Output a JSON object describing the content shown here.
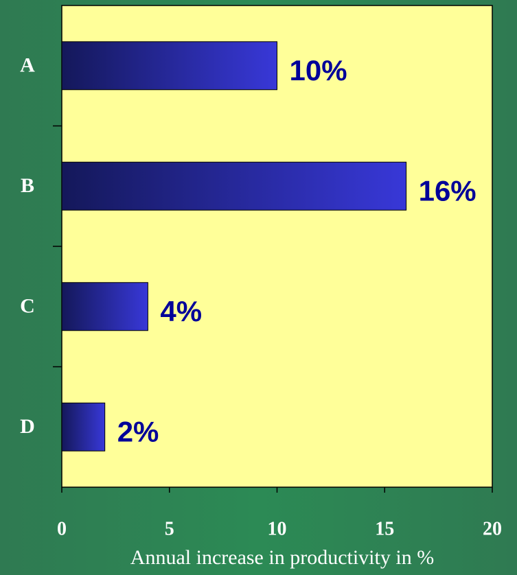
{
  "chart_data": {
    "type": "bar",
    "orientation": "horizontal",
    "categories": [
      "A",
      "B",
      "C",
      "D"
    ],
    "values": [
      10,
      16,
      4,
      2
    ],
    "value_labels": [
      "10%",
      "16%",
      "4%",
      "2%"
    ],
    "color": "#3333cc",
    "xlim": [
      0,
      20
    ],
    "xticks": [
      0,
      5,
      10,
      15,
      20
    ],
    "x_label": "Annual increase in productivity in %"
  }
}
